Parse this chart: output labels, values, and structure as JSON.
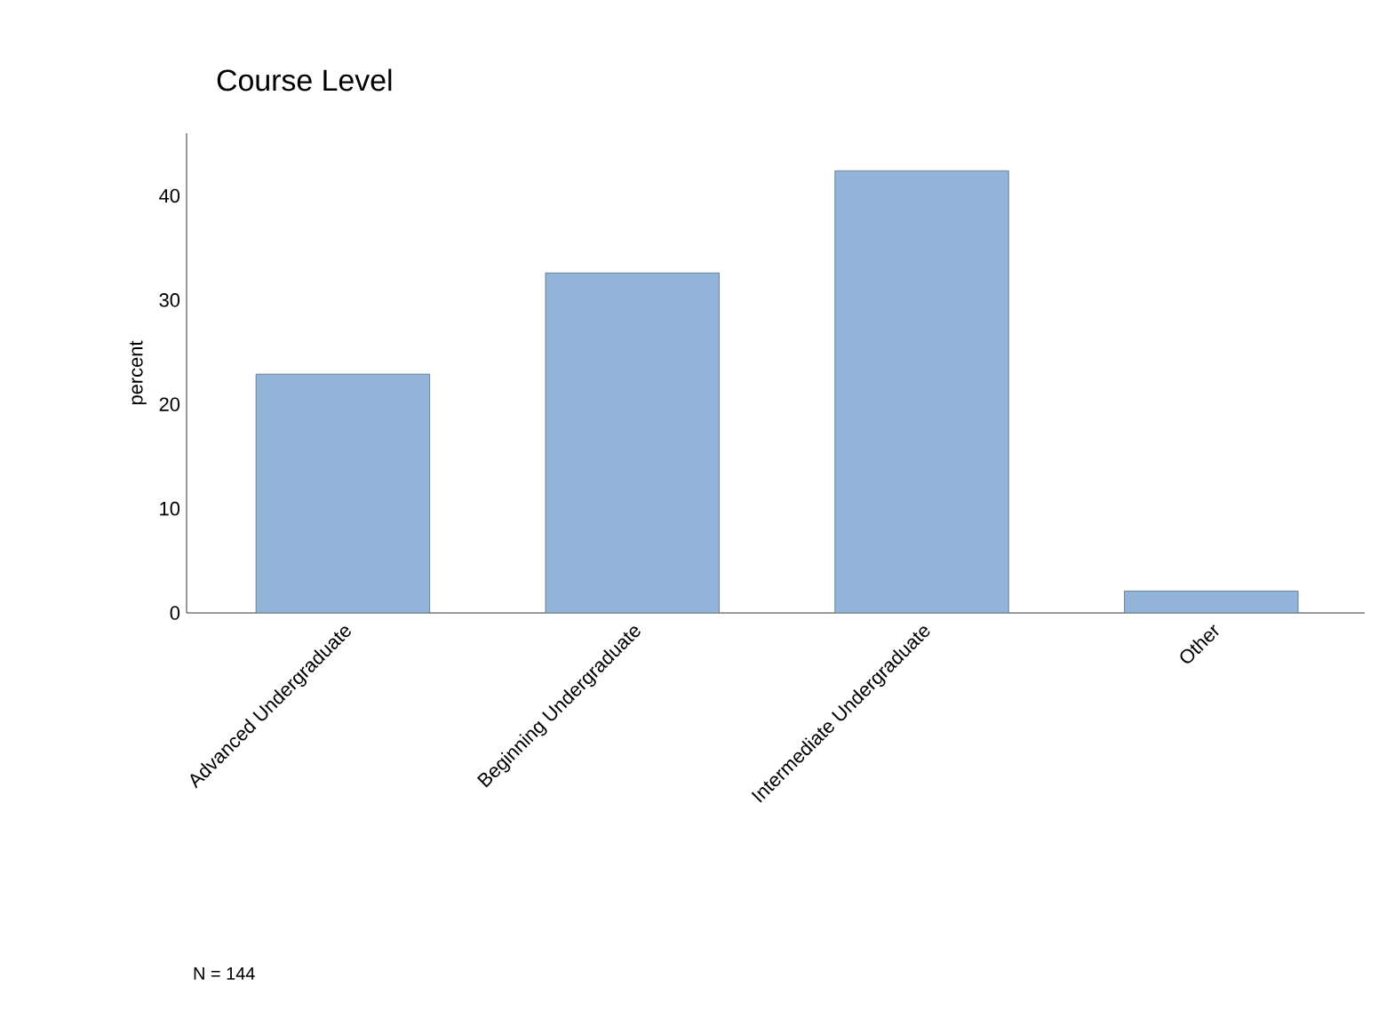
{
  "chart_data": {
    "type": "bar",
    "title": "Course Level",
    "ylabel": "percent",
    "categories": [
      "Advanced Undergraduate",
      "Beginning Undergraduate",
      "Intermediate Undergraduate",
      "Other"
    ],
    "values": [
      22.9,
      32.6,
      42.4,
      2.1
    ],
    "color": "#92b4d8",
    "ylim": [
      0,
      46
    ],
    "yticks": [
      0,
      10,
      20,
      30,
      40
    ],
    "annotations": [
      "N = 144"
    ]
  }
}
